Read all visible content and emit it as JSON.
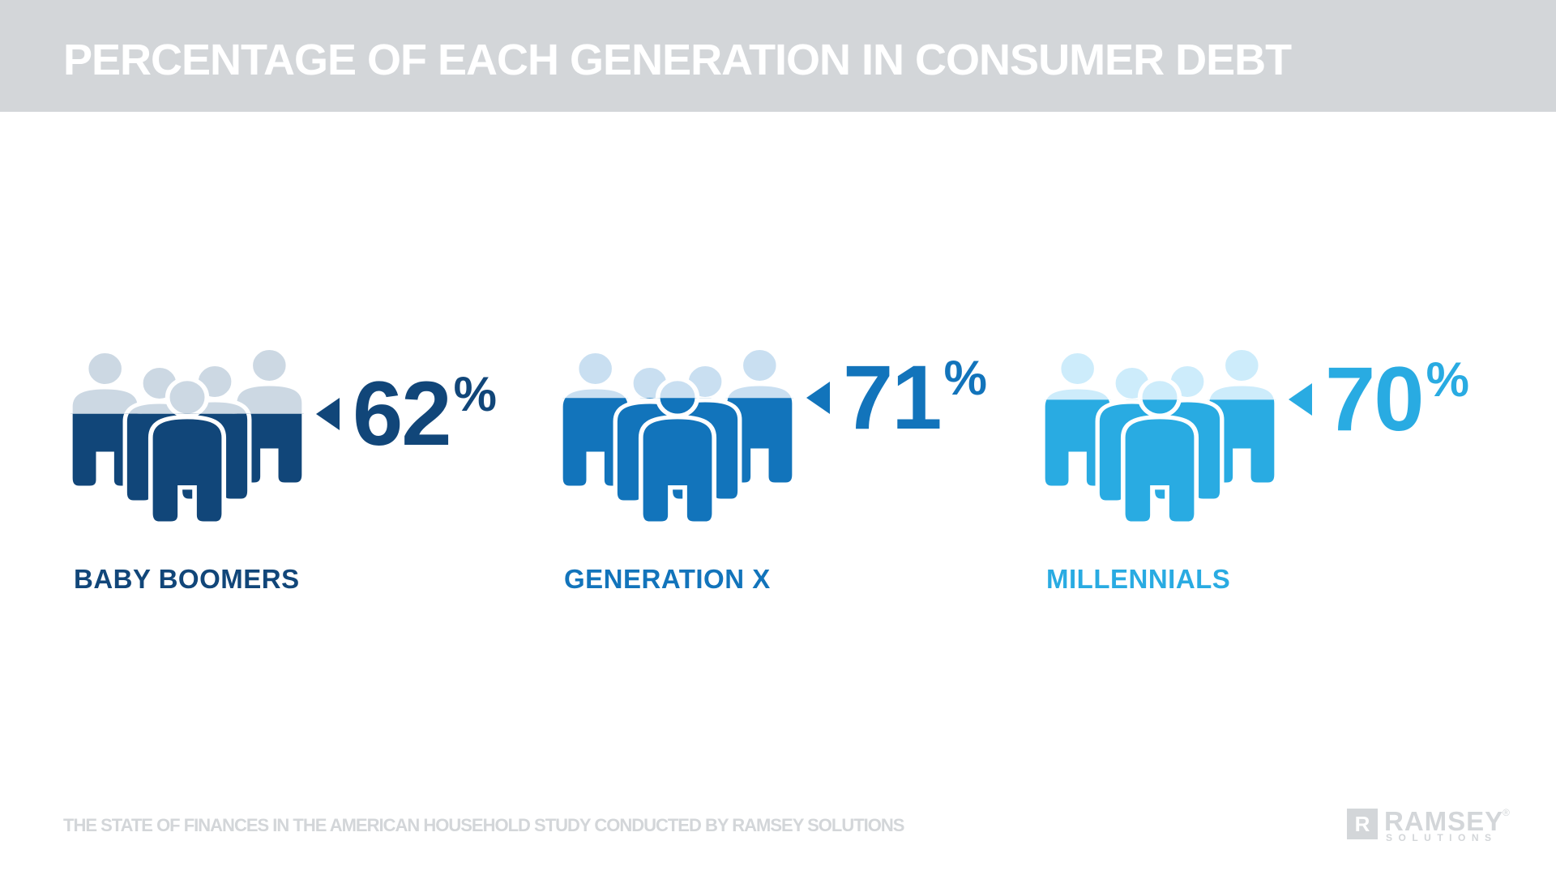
{
  "header": {
    "title": "PERCENTAGE OF EACH GENERATION IN CONSUMER DEBT",
    "bar_color": "#d3d6d9",
    "text_color": "#ffffff"
  },
  "chart_data": {
    "type": "bar",
    "variant": "pictogram - crowd of 5 person icons per category, filled from bottom to the stated percentage",
    "title": "PERCENTAGE OF EACH GENERATION IN CONSUMER DEBT",
    "categories": [
      "BABY BOOMERS",
      "GENERATION X",
      "MILLENNIALS"
    ],
    "values": [
      62,
      71,
      70
    ],
    "unit": "%",
    "value_labels": [
      "62%",
      "71%",
      "70%"
    ],
    "series_colors": [
      "#114679",
      "#1274bb",
      "#29abe2"
    ],
    "unfilled_colors": [
      "#ccd8e3",
      "#c9dff1",
      "#cdecfb"
    ],
    "source": "THE STATE OF FINANCES IN THE AMERICAN HOUSEHOLD STUDY CONDUCTED BY RAMSEY SOLUTIONS",
    "legend_position": "none",
    "grid": false
  },
  "groups": [
    {
      "label": "BABY BOOMERS",
      "value": 62,
      "value_display": "62",
      "percent_sign": "%",
      "dark": "#114679",
      "light": "#ccd8e3"
    },
    {
      "label": "GENERATION X",
      "value": 71,
      "value_display": "71",
      "percent_sign": "%",
      "dark": "#1274bb",
      "light": "#c9dff1"
    },
    {
      "label": "MILLENNIALS",
      "value": 70,
      "value_display": "70",
      "percent_sign": "%",
      "dark": "#29abe2",
      "light": "#cdecfb"
    }
  ],
  "footer": {
    "source": "THE STATE OF FINANCES IN THE AMERICAN HOUSEHOLD STUDY CONDUCTED BY RAMSEY SOLUTIONS",
    "logo": {
      "mark": "R",
      "name": "RAMSEY",
      "reg": "®",
      "sub": "SOLUTIONS",
      "color": "#d3d6d9"
    }
  }
}
